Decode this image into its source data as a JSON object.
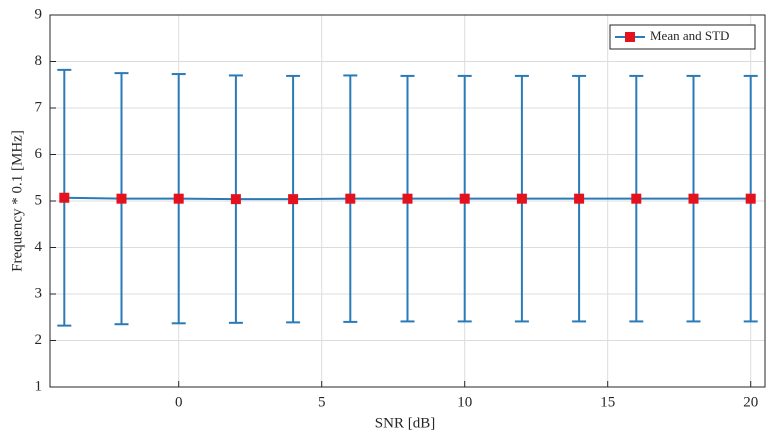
{
  "chart_data": {
    "type": "errorbar",
    "x_label": "SNR [dB]",
    "y_label": "Frequency * 0.1 [MHz]",
    "x": [
      -4,
      -2,
      0,
      2,
      4,
      6,
      8,
      10,
      12,
      14,
      16,
      18,
      20
    ],
    "series": [
      {
        "name": "Mean and STD",
        "color": "#2a7ab8",
        "marker_color": "#e3121c",
        "values": [
          5.07,
          5.05,
          5.05,
          5.04,
          5.04,
          5.05,
          5.05,
          5.05,
          5.05,
          5.05,
          5.05,
          5.05,
          5.05
        ],
        "errors": [
          2.75,
          2.7,
          2.68,
          2.66,
          2.65,
          2.65,
          2.64,
          2.64,
          2.64,
          2.64,
          2.64,
          2.64,
          2.64
        ]
      }
    ],
    "xlim": [
      -4.5,
      20.5
    ],
    "xticks": [
      0,
      5,
      10,
      15,
      20
    ],
    "ylim": [
      1,
      9
    ],
    "yticks": [
      1,
      2,
      3,
      4,
      5,
      6,
      7,
      8,
      9
    ],
    "grid": true,
    "legend": "upper right"
  }
}
